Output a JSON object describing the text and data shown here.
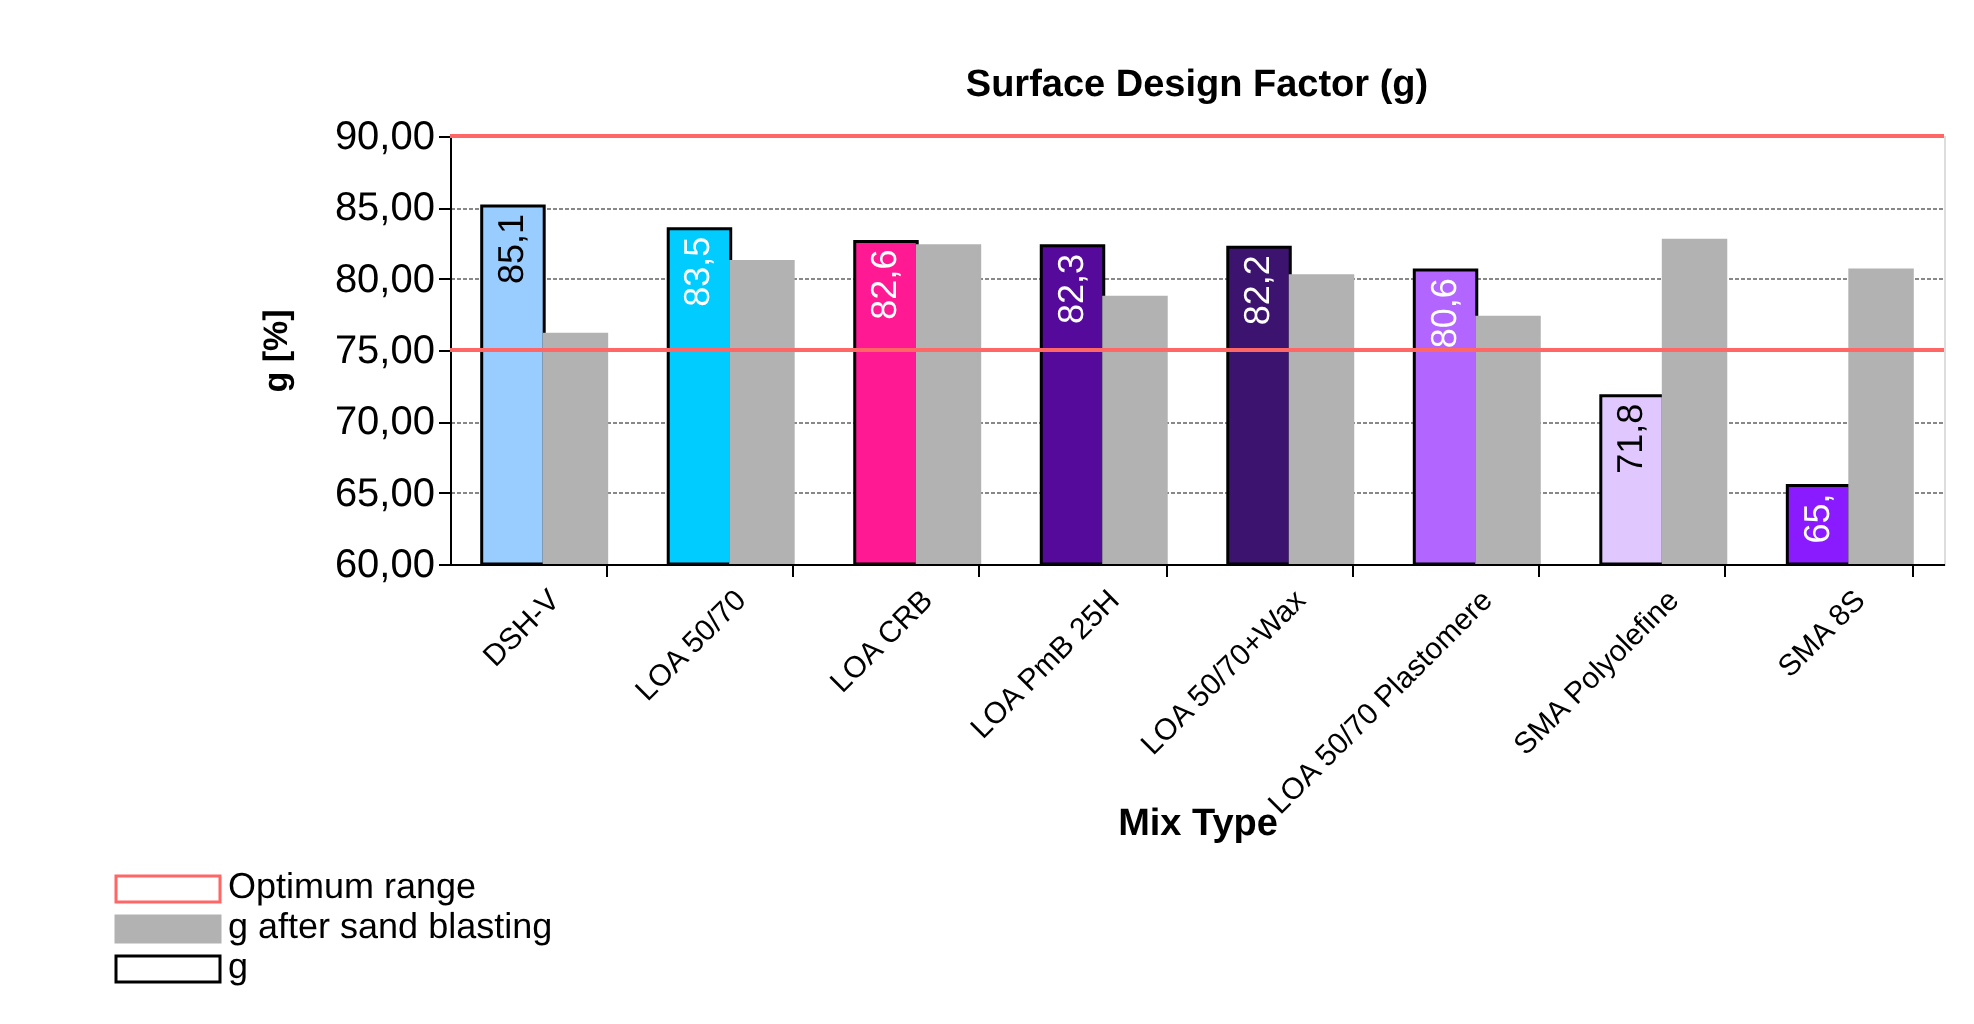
{
  "chart_data": {
    "type": "bar",
    "title": "Surface Design Factor (g)",
    "xlabel": "Mix Type",
    "ylabel": "g [%]",
    "categories": [
      "DSH-V",
      "LOA 50/70",
      "LOA CRB",
      "LOA PmB 25H",
      "LOA 50/70+Wax",
      "LOA 50/70 Plastomere",
      "SMA Polyolefine",
      "SMA 8S"
    ],
    "series": [
      {
        "name": "g",
        "color": "#ffffff",
        "colors": [
          "#99ccff",
          "#00ccff",
          "#ff1a94",
          "#550a9b",
          "#3c1470",
          "#b266ff",
          "#e0c8ff",
          "#8a1aff"
        ],
        "values": [
          85.1,
          83.5,
          82.6,
          82.3,
          82.2,
          80.6,
          71.8,
          65.5
        ],
        "value_labels": [
          "85,1",
          "83,5",
          "82,6",
          "82,3",
          "82,2",
          "80,6",
          "71,8",
          "65,"
        ]
      },
      {
        "name": "g after sand blasting",
        "color": "#b2b2b2",
        "values": [
          76.1,
          81.2,
          82.3,
          78.7,
          80.2,
          77.3,
          82.7,
          80.6
        ]
      }
    ],
    "ylim": [
      60,
      90
    ],
    "yticks": [
      {
        "value": 60,
        "label": "60,00"
      },
      {
        "value": 65,
        "label": "65,00"
      },
      {
        "value": 70,
        "label": "70,00"
      },
      {
        "value": 75,
        "label": "75,00"
      },
      {
        "value": 80,
        "label": "80,00"
      },
      {
        "value": 85,
        "label": "85,00"
      },
      {
        "value": 90,
        "label": "90,00"
      }
    ],
    "ref_lines": [
      {
        "axis": "y",
        "value": 75,
        "label": "Optimum range",
        "color": "#ff6666"
      },
      {
        "axis": "y",
        "value": 90,
        "color": "#ff6666"
      }
    ],
    "grid": "y",
    "legend": "bottom left"
  }
}
